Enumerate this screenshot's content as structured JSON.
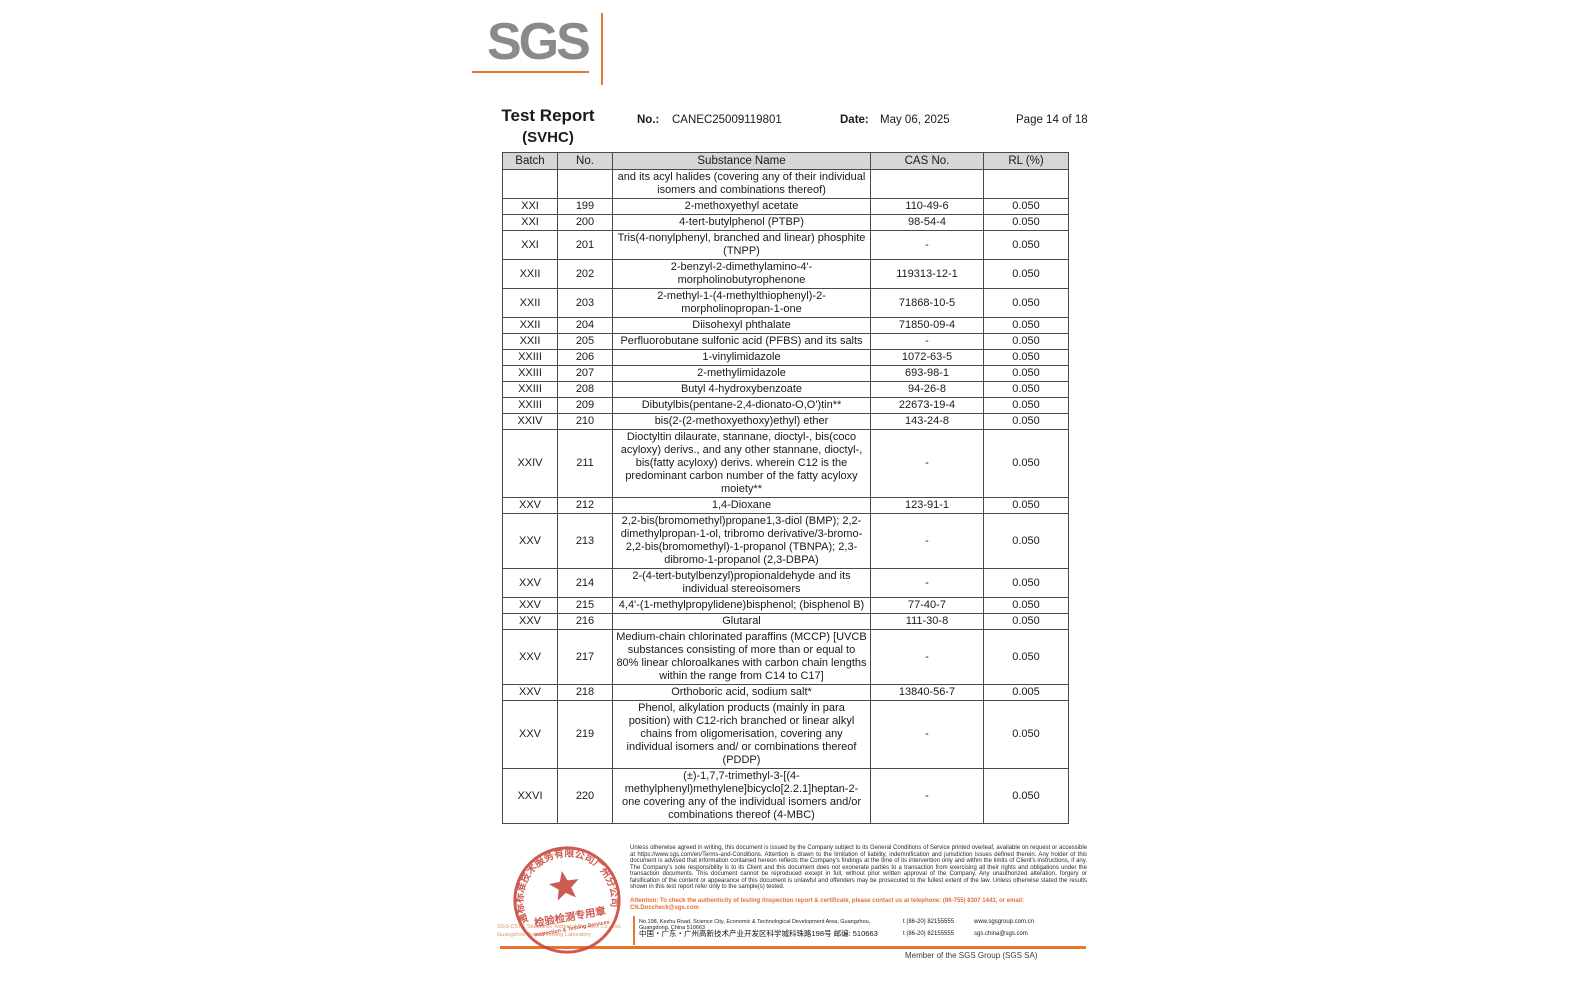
{
  "header": {
    "logo_text": "SGS",
    "title_line1": "Test Report",
    "title_line2": "(SVHC)",
    "no_label": "No.:",
    "no_value": "CANEC25009119801",
    "date_label": "Date:",
    "date_value": "May 06, 2025",
    "page_label": "Page 14 of 18"
  },
  "colors": {
    "accent_orange": "#e8762c",
    "logo_gray": "#8a8a8a",
    "stamp_red": "#c8453a",
    "attention_orange": "#e0703a",
    "table_header_bg": "#d6d6d6"
  },
  "table": {
    "columns": [
      "Batch",
      "No.",
      "Substance Name",
      "CAS No.",
      "RL (%)"
    ],
    "rows": [
      {
        "batch": "",
        "no": "",
        "substance": "and its acyl halides (covering any of their individual isomers and combinations thereof)",
        "cas": "",
        "rl": ""
      },
      {
        "batch": "XXI",
        "no": "199",
        "substance": "2-methoxyethyl acetate",
        "cas": "110-49-6",
        "rl": "0.050"
      },
      {
        "batch": "XXI",
        "no": "200",
        "substance": "4-tert-butylphenol (PTBP)",
        "cas": "98-54-4",
        "rl": "0.050"
      },
      {
        "batch": "XXI",
        "no": "201",
        "substance": "Tris(4-nonylphenyl, branched and linear) phosphite (TNPP)",
        "cas": "-",
        "rl": "0.050"
      },
      {
        "batch": "XXII",
        "no": "202",
        "substance": "2-benzyl-2-dimethylamino-4'-morpholinobutyrophenone",
        "cas": "119313-12-1",
        "rl": "0.050"
      },
      {
        "batch": "XXII",
        "no": "203",
        "substance": "2-methyl-1-(4-methylthiophenyl)-2-morpholinopropan-1-one",
        "cas": "71868-10-5",
        "rl": "0.050"
      },
      {
        "batch": "XXII",
        "no": "204",
        "substance": "Diisohexyl phthalate",
        "cas": "71850-09-4",
        "rl": "0.050"
      },
      {
        "batch": "XXII",
        "no": "205",
        "substance": "Perfluorobutane sulfonic acid (PFBS) and its salts",
        "cas": "-",
        "rl": "0.050"
      },
      {
        "batch": "XXIII",
        "no": "206",
        "substance": "1-vinylimidazole",
        "cas": "1072-63-5",
        "rl": "0.050"
      },
      {
        "batch": "XXIII",
        "no": "207",
        "substance": "2-methylimidazole",
        "cas": "693-98-1",
        "rl": "0.050"
      },
      {
        "batch": "XXIII",
        "no": "208",
        "substance": "Butyl 4-hydroxybenzoate",
        "cas": "94-26-8",
        "rl": "0.050"
      },
      {
        "batch": "XXIII",
        "no": "209",
        "substance": "Dibutylbis(pentane-2,4-dionato-O,O')tin**",
        "cas": "22673-19-4",
        "rl": "0.050"
      },
      {
        "batch": "XXIV",
        "no": "210",
        "substance": "bis(2-(2-methoxyethoxy)ethyl) ether",
        "cas": "143-24-8",
        "rl": "0.050"
      },
      {
        "batch": "XXIV",
        "no": "211",
        "substance": "Dioctyltin dilaurate, stannane, dioctyl-, bis(coco acyloxy) derivs., and any other stannane, dioctyl-, bis(fatty acyloxy) derivs. wherein C12 is the predominant carbon number of the fatty acyloxy moiety**",
        "cas": "-",
        "rl": "0.050"
      },
      {
        "batch": "XXV",
        "no": "212",
        "substance": "1,4-Dioxane",
        "cas": "123-91-1",
        "rl": "0.050"
      },
      {
        "batch": "XXV",
        "no": "213",
        "substance": "2,2-bis(bromomethyl)propane1,3-diol (BMP); 2,2-dimethylpropan-1-ol, tribromo derivative/3-bromo-2,2-bis(bromomethyl)-1-propanol (TBNPA); 2,3-dibromo-1-propanol (2,3-DBPA)",
        "cas": "-",
        "rl": "0.050"
      },
      {
        "batch": "XXV",
        "no": "214",
        "substance": "2-(4-tert-butylbenzyl)propionaldehyde and its individual stereoisomers",
        "cas": "-",
        "rl": "0.050"
      },
      {
        "batch": "XXV",
        "no": "215",
        "substance": "4,4'-(1-methylpropylidene)bisphenol; (bisphenol B)",
        "cas": "77-40-7",
        "rl": "0.050"
      },
      {
        "batch": "XXV",
        "no": "216",
        "substance": "Glutaral",
        "cas": "111-30-8",
        "rl": "0.050"
      },
      {
        "batch": "XXV",
        "no": "217",
        "substance": "Medium-chain chlorinated paraffins (MCCP) [UVCB substances consisting of more than or equal to 80% linear chloroalkanes with carbon chain lengths within the range from C14 to C17]",
        "cas": "-",
        "rl": "0.050"
      },
      {
        "batch": "XXV",
        "no": "218",
        "substance": "Orthoboric acid, sodium salt*",
        "cas": "13840-56-7",
        "rl": "0.005"
      },
      {
        "batch": "XXV",
        "no": "219",
        "substance": "Phenol, alkylation products (mainly in para position) with C12-rich branched or linear alkyl chains from oligomerisation, covering any individual isomers and/ or combinations thereof (PDDP)",
        "cas": "-",
        "rl": "0.050"
      },
      {
        "batch": "XXVI",
        "no": "220",
        "substance": "(±)-1,7,7-trimethyl-3-[(4-methylphenyl)methylene]bicyclo[2.2.1]heptan-2-one covering any of the individual isomers and/or combinations thereof (4-MBC)",
        "cas": "-",
        "rl": "0.050"
      }
    ]
  },
  "footer": {
    "disclaimer": "Unless otherwise agreed in writing, this document is issued by the Company subject to its General Conditions of Service printed overleaf, available on request or accessible at https://www.sgs.com/en/Terms-and-Conditions. Attention is drawn to the limitation of liability, indemnification and jurisdiction issues defined therein. Any holder of this document is advised that information contained hereon reflects the Company's findings at the time of its intervention only and within the limits of Client's instructions, if any. The Company's sole responsibility is to its Client and this document does not exonerate parties to a transaction from exercising all their rights and obligations under the transaction documents. This document cannot be reproduced except in full, without prior written approval of the Company. Any unauthorized alteration, forgery or falsification of the content or appearance of this document is unlawful and offenders may be prosecuted to the fullest extent of the law. Unless otherwise stated the results shown in this test report refer only to the sample(s) tested.",
    "attention": "Attention: To check the authenticity of testing /inspection report & certificate, please contact us at telephone: (86-755) 8307 1443, or email: CN.Doccheck@sgs.com",
    "stamp": {
      "arc_text": "通标标准技术服务有限公司广州分公司",
      "center_line1": "检验检测专用章",
      "center_line2": "Inspection & Testing Services"
    },
    "stamp_company_line1": "SGS-CSTC Standards Technical Services Co., Ltd.",
    "stamp_company_line2": "Guangzhou Branch Testing Laboratory",
    "address_en": "No.198, Kezhu Road, Science City, Economic & Technological Development Area, Guangzhou, Guangdong, China 510663",
    "address_cn": "中国・广东・广州高新技术产业开发区科学城科珠路198号  邮编: 510663",
    "tel1": "t (86-20) 82155555",
    "tel2": "t (86-20) 82155555",
    "website": "www.sgsgroup.com.cn",
    "email": "sgs.china@sgs.com",
    "member": "Member of the SGS Group (SGS SA)"
  }
}
